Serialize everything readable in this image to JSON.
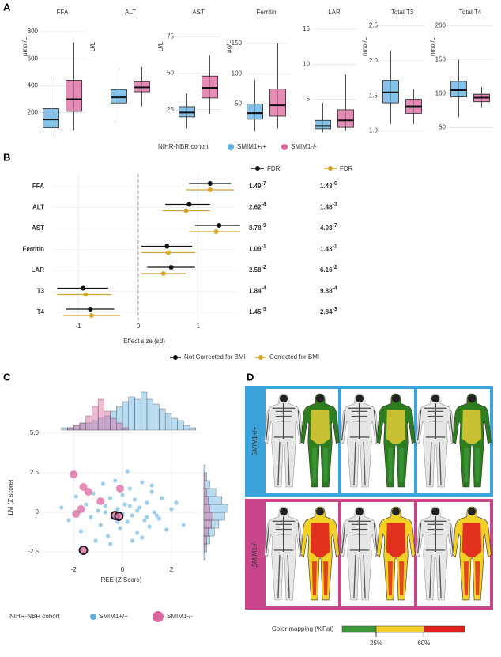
{
  "chart_data": [
    {
      "type": "box",
      "panel": "A",
      "legend_title": "NIHR-NBR cohort",
      "series": [
        {
          "name": "SMIM1+/+",
          "color": "#5fafe0"
        },
        {
          "name": "SMIM1-/-",
          "color": "#d9679e"
        }
      ],
      "plots": [
        {
          "title": "FFA",
          "ylabel": "µmol/L",
          "ylim": [
            40,
            870
          ],
          "yticks": [
            200,
            400,
            600,
            800
          ],
          "boxes": [
            [
              40,
              90,
              150,
              230,
              460
            ],
            [
              70,
              210,
              300,
              440,
              720
            ]
          ]
        },
        {
          "title": "ALT",
          "ylabel": "U/L",
          "ylim": [
            0,
            100
          ],
          "boxes": [
            [
              10,
              28,
              33,
              40,
              58
            ],
            [
              25,
              38,
              42,
              47,
              60
            ]
          ]
        },
        {
          "title": "AST",
          "ylabel": "U/L",
          "ylim": [
            8,
            85
          ],
          "yticks": [
            25,
            50,
            75
          ],
          "boxes": [
            [
              12,
              20,
              23,
              27,
              36
            ],
            [
              22,
              33,
              40,
              48,
              62
            ]
          ]
        },
        {
          "title": "Ferritin",
          "ylabel": "µg/L",
          "ylim": [
            0,
            185
          ],
          "yticks": [
            50,
            100,
            150
          ],
          "boxes": [
            [
              5,
              25,
              35,
              50,
              90
            ],
            [
              10,
              30,
              48,
              75,
              150
            ]
          ]
        },
        {
          "title": "LAR",
          "ylim": [
            0,
            16
          ],
          "yticks": [
            5,
            10,
            15
          ],
          "boxes": [
            [
              0.3,
              0.8,
              1.2,
              2.0,
              4.5
            ],
            [
              0.5,
              1.0,
              2.0,
              3.5,
              8.5
            ]
          ]
        },
        {
          "title": "Total T3",
          "ylabel": "nmol/L",
          "ylim": [
            0.95,
            2.55
          ],
          "yticks": [
            {
              "value": 1,
              "label": "1.0"
            },
            1.5,
            {
              "value": 2,
              "label": "2.0"
            },
            2.5
          ],
          "boxes": [
            [
              1.1,
              1.4,
              1.55,
              1.72,
              2.15
            ],
            [
              1.1,
              1.25,
              1.35,
              1.45,
              1.6
            ]
          ]
        },
        {
          "title": "Total T4",
          "ylabel": "nmol/L",
          "ylim": [
            40,
            205
          ],
          "yticks": [
            50,
            100,
            150,
            200
          ],
          "boxes": [
            [
              65,
              95,
              105,
              118,
              150
            ],
            [
              80,
              88,
              94,
              99,
              110
            ]
          ]
        }
      ]
    },
    {
      "type": "forest",
      "panel": "B",
      "xlabel": "Effect size (sd)",
      "fdr_title": "FDR",
      "categories": [
        "FFA",
        "ALT",
        "AST",
        "Ferritin",
        "LAR",
        "T3",
        "T4"
      ],
      "xlim": [
        -1.45,
        1.65
      ],
      "xticks": [
        -1,
        0,
        1
      ],
      "grid": true,
      "zero_line": true,
      "series": [
        {
          "name": "Not Corrected for BMI",
          "color": "#111111",
          "values": [
            1.2,
            0.85,
            1.35,
            0.48,
            0.55,
            -0.92,
            -0.8
          ],
          "ci_low": [
            0.85,
            0.45,
            0.95,
            0.05,
            0.15,
            -1.35,
            -1.2
          ],
          "ci_high": [
            1.55,
            1.2,
            1.7,
            0.9,
            0.95,
            -0.5,
            -0.4
          ],
          "fdr": [
            1.49e-07,
            0.000262,
            8.78e-09,
            0.109,
            0.0258,
            0.000184,
            0.00145
          ],
          "fdr_labels": [
            [
              "1.49",
              "-7"
            ],
            [
              "2.62",
              "-4"
            ],
            [
              "8.78",
              "-9"
            ],
            [
              "1.09",
              "-1"
            ],
            [
              "2.58",
              "-2"
            ],
            [
              "1.84",
              "-4"
            ],
            [
              "1.45",
              "-3"
            ]
          ]
        },
        {
          "name": "Corrected for BMI",
          "color": "#d4a52c",
          "values": [
            1.2,
            0.8,
            1.3,
            0.5,
            0.42,
            -0.88,
            -0.78
          ],
          "ci_low": [
            0.8,
            0.4,
            0.85,
            0.05,
            0.05,
            -1.35,
            -1.25
          ],
          "ci_high": [
            1.6,
            1.2,
            1.7,
            0.95,
            0.8,
            -0.45,
            -0.3
          ],
          "fdr": [
            1.43e-06,
            0.00148,
            4.03e-07,
            0.143,
            0.0616,
            0.000988,
            0.00284
          ],
          "fdr_labels": [
            [
              "1.43",
              "-6"
            ],
            [
              "1.48",
              "-3"
            ],
            [
              "4.03",
              "-7"
            ],
            [
              "1.43",
              "-1"
            ],
            [
              "6.16",
              "-2"
            ],
            [
              "9.88",
              "-4"
            ],
            [
              "2.84",
              "-3"
            ]
          ]
        }
      ]
    },
    {
      "type": "scatter",
      "panel": "C",
      "xlabel": "REE (Z Score)",
      "ylabel": "LM (Z score)",
      "legend_title": "NIHR-NBR cohort",
      "xlim": [
        -3.3,
        3.2
      ],
      "ylim": [
        -3.2,
        5.1
      ],
      "xticks": [
        -2,
        0,
        2
      ],
      "yticks": [
        -2.5,
        0,
        2.5,
        {
          "value": 5,
          "label": "5.0"
        }
      ],
      "grid": true,
      "series": [
        {
          "name": "SMIM1+/+",
          "color": "#5fafe0",
          "x": [
            -2.5,
            -2.2,
            -1.9,
            -1.7,
            -1.5,
            -1.3,
            -1.2,
            -1.0,
            -0.9,
            -0.8,
            -0.7,
            -0.6,
            -0.5,
            -0.4,
            -0.3,
            -0.2,
            -0.1,
            0,
            0.1,
            0.2,
            0.3,
            0.4,
            0.5,
            0.6,
            0.7,
            0.8,
            0.9,
            1.0,
            1.1,
            1.2,
            1.3,
            1.5,
            1.6,
            1.8,
            2.0,
            2.2,
            2.5,
            -0.5,
            0.2,
            0.4,
            0.8,
            1.2,
            -1.1,
            -0.2,
            0.6,
            1.4,
            0,
            -0.7,
            0.3,
            1.0
          ],
          "values": [
            0.3,
            -0.5,
            1.0,
            -1.2,
            0.5,
            -0.3,
            1.2,
            0.1,
            -0.8,
            1.8,
            0.4,
            -1.5,
            0.9,
            -0.3,
            2.0,
            0.2,
            -1.0,
            1.1,
            0.5,
            -0.6,
            1.5,
            -0.2,
            0.8,
            -1.3,
            0.3,
            1.9,
            -0.5,
            0.6,
            -0.9,
            1.3,
            0,
            -0.4,
            0.9,
            -1.1,
            0.2,
            0.6,
            -0.8,
            -2.0,
            2.6,
            -1.8,
            -1.6,
            1.7,
            -1.8,
            -0.6,
            0.1,
            -0.2,
            -0.1,
            0,
            0.4,
            -0.3
          ]
        },
        {
          "name": "SMIM1-/-",
          "color": "#d9679e",
          "x": [
            -2.0,
            -1.6,
            -1.4,
            -0.9,
            -0.1,
            -0.3,
            -0.15,
            -1.6,
            -1.7,
            -1.9
          ],
          "values": [
            2.4,
            1.6,
            1.3,
            0.7,
            1.5,
            -0.2,
            -0.25,
            -2.4,
            0.2,
            -0.1
          ],
          "outlined": [
            false,
            false,
            false,
            false,
            false,
            true,
            true,
            true,
            false,
            false
          ]
        }
      ],
      "top_hist": {
        "bins": [
          -3,
          -2.75,
          -2.5,
          -2.25,
          -2,
          -1.75,
          -1.5,
          -1.25,
          -1,
          -0.75,
          -0.5,
          -0.25,
          0,
          0.25,
          0.5,
          0.75,
          1,
          1.25,
          1.5,
          1.75,
          2,
          2.25,
          2.5,
          2.75,
          3
        ],
        "ylim": [
          0,
          18
        ],
        "counts": [
          [
            0,
            0,
            1,
            1,
            2,
            3,
            3,
            4,
            5,
            6,
            8,
            10,
            12,
            14,
            13,
            16,
            13,
            11,
            9,
            7,
            5,
            4,
            2,
            1
          ],
          [
            0,
            0,
            0,
            1,
            2,
            3,
            6,
            10,
            13,
            8,
            5,
            3,
            1,
            0,
            0,
            0,
            0,
            0,
            0,
            0,
            0,
            0,
            0,
            0
          ]
        ]
      },
      "right_hist": {
        "bins": [
          -3,
          -2.5,
          -2,
          -1.5,
          -1,
          -0.5,
          0,
          0.5,
          1,
          1.5,
          2,
          2.5,
          3
        ],
        "xlim": [
          0,
          18
        ],
        "counts": [
          [
            1,
            2,
            4,
            7,
            10,
            14,
            16,
            12,
            8,
            4,
            2,
            1
          ],
          [
            0,
            1,
            2,
            3,
            5,
            6,
            4,
            3,
            2,
            1,
            1,
            0
          ]
        ]
      }
    }
  ],
  "figure_d": {
    "panel": "D",
    "rows": [
      {
        "label": "SMIM1+/+",
        "color": "#3ba3dc"
      },
      {
        "label": "SMIM1-/-",
        "color": "#c9468a"
      }
    ],
    "colorbar": {
      "title": "Color mapping (%Fat)",
      "range": [
        0,
        90
      ],
      "colors": [
        "#3a9a3a",
        "#f2d027",
        "#e0201d"
      ],
      "ticks": [
        {
          "value": 25,
          "label": "25%"
        },
        {
          "value": 60,
          "label": "60%"
        }
      ]
    }
  }
}
